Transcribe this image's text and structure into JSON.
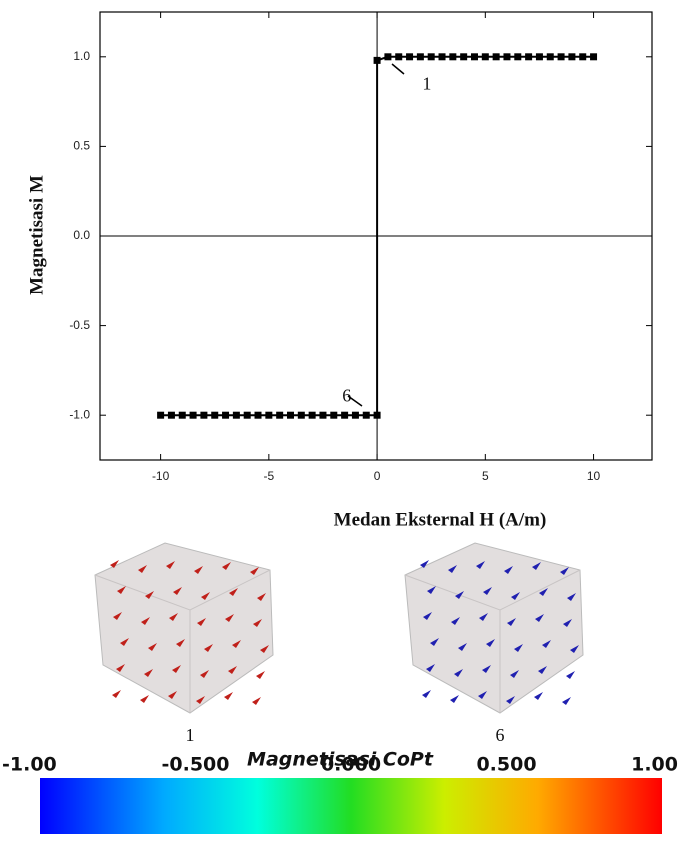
{
  "chart_data": {
    "type": "line",
    "x_label": "Medan Eksternal H (A/m)",
    "y_label": "Magnetisasi M",
    "xlim": [
      -12.8,
      12.7
    ],
    "ylim": [
      -1.25,
      1.25
    ],
    "xticks": [
      -10,
      -5,
      0,
      5,
      10
    ],
    "yticks": [
      {
        "value": -1,
        "label": "-1.0"
      },
      -0.5,
      {
        "value": 0,
        "label": "0.0"
      },
      0.5,
      {
        "value": 1,
        "label": "1.0"
      }
    ],
    "series": [
      {
        "color": "#000000",
        "x": [
          -10,
          -9.5,
          -9,
          -8.5,
          -8,
          -7.5,
          -7,
          -6.5,
          -6,
          -5.5,
          -5,
          -4.5,
          -4,
          -3.5,
          -3,
          -2.5,
          -2,
          -1.5,
          -1,
          -0.5,
          0,
          0,
          0.5,
          1,
          1.5,
          2,
          2.5,
          3,
          3.5,
          4,
          4.5,
          5,
          5.5,
          6,
          6.5,
          7,
          7.5,
          8,
          8.5,
          9,
          9.5,
          10
        ],
        "values": [
          -1,
          -1,
          -1,
          -1,
          -1,
          -1,
          -1,
          -1,
          -1,
          -1,
          -1,
          -1,
          -1,
          -1,
          -1,
          -1,
          -1,
          -1,
          -1,
          -1,
          -1,
          0.98,
          1,
          1,
          1,
          1,
          1,
          1,
          1,
          1,
          1,
          1,
          1,
          1,
          1,
          1,
          1,
          1,
          1,
          1,
          1,
          1
        ]
      }
    ],
    "annotations": [
      {
        "text": "1",
        "x": 2.3,
        "y": 0.84
      },
      {
        "text": "6",
        "x": -1.4,
        "y": -0.9
      }
    ],
    "snapshots": [
      "1",
      "6"
    ],
    "colorbar": {
      "title": "Magnetisasi CoPt",
      "ticks": [
        {
          "value": -1,
          "label": "-1.00"
        },
        {
          "value": -0.5,
          "label": "-0.500"
        },
        {
          "value": 0,
          "label": "0.000"
        },
        {
          "value": 0.5,
          "label": "0.500"
        },
        {
          "value": 1,
          "label": "1.00"
        }
      ]
    }
  }
}
